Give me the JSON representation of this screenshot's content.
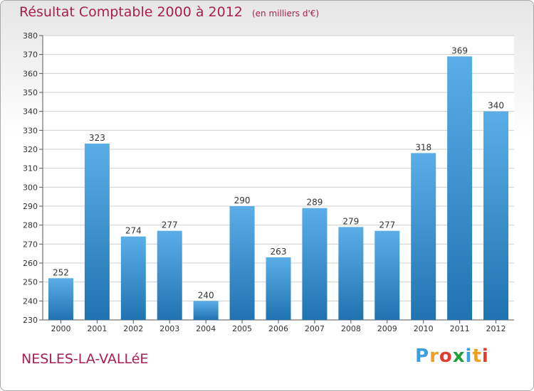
{
  "header": {
    "title": "Résultat Comptable 2000 à 2012",
    "unit": "(en milliers d'€)"
  },
  "footer": {
    "commune": "NESLES-LA-VALLéE",
    "logo_letters": [
      "P",
      "r",
      "o",
      "x",
      "i",
      "t",
      "i"
    ],
    "logo_colors": [
      "#3aa0e0",
      "#f0a020",
      "#e03c32",
      "#1ea03c",
      "#3aa0e0",
      "#f0a020",
      "#e03c32"
    ]
  },
  "colors": {
    "title": "#a8204e",
    "bar_light": "#5aaee8",
    "bar_dark": "#1f73b0",
    "grid": "#cfcfcf"
  },
  "chart_data": {
    "type": "bar",
    "categories": [
      "2000",
      "2001",
      "2002",
      "2003",
      "2004",
      "2005",
      "2006",
      "2007",
      "2008",
      "2009",
      "2010",
      "2011",
      "2012"
    ],
    "values": [
      252,
      323,
      274,
      277,
      240,
      290,
      263,
      289,
      279,
      277,
      318,
      369,
      340
    ],
    "ylim": [
      230,
      380
    ],
    "yticks": [
      230,
      240,
      250,
      260,
      270,
      280,
      290,
      300,
      310,
      320,
      330,
      340,
      350,
      360,
      370,
      380
    ],
    "grid": true
  }
}
